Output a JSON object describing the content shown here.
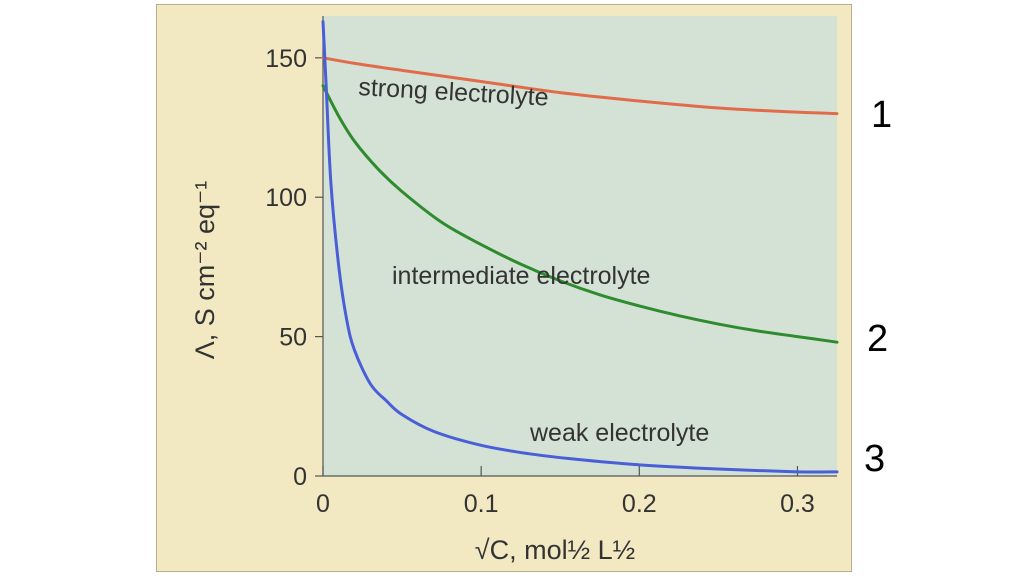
{
  "chart_data": {
    "type": "line",
    "xlabel": "√C, mol½ L½",
    "ylabel": "Λ, S cm⁻² eq⁻¹",
    "xlim": [
      0,
      0.325
    ],
    "ylim": [
      0,
      165
    ],
    "x_ticks": [
      "0",
      "0.1",
      "0.2",
      "0.3"
    ],
    "y_ticks": [
      "0",
      "50",
      "100",
      "150"
    ],
    "grid": false,
    "background_color": "#d4e2d6",
    "series": [
      {
        "name": "strong electrolyte",
        "color": "#e26b4c",
        "x": [
          0,
          0.02,
          0.05,
          0.1,
          0.15,
          0.2,
          0.25,
          0.3,
          0.325
        ],
        "y": [
          150,
          148,
          145.5,
          141.5,
          137.5,
          134.5,
          132,
          130.5,
          130
        ]
      },
      {
        "name": "intermediate electrolyte",
        "color": "#2e8b2e",
        "x": [
          0,
          0.01,
          0.02,
          0.035,
          0.05,
          0.075,
          0.1,
          0.125,
          0.15,
          0.175,
          0.2,
          0.225,
          0.25,
          0.275,
          0.3,
          0.325
        ],
        "y": [
          140,
          129,
          120,
          110,
          102,
          91,
          83,
          76,
          70,
          65,
          61,
          57.5,
          54.5,
          52,
          50,
          48
        ]
      },
      {
        "name": "weak electrolyte",
        "color": "#4a5ed8",
        "x": [
          0,
          0.002,
          0.005,
          0.01,
          0.015,
          0.02,
          0.03,
          0.04,
          0.05,
          0.07,
          0.1,
          0.13,
          0.16,
          0.2,
          0.25,
          0.3,
          0.325
        ],
        "y": [
          163,
          140,
          105,
          75,
          56,
          45,
          33,
          27,
          22,
          16,
          11,
          8,
          6,
          4,
          2.5,
          1.5,
          1.5
        ]
      }
    ],
    "side_labels": [
      "1",
      "2",
      "3"
    ]
  }
}
